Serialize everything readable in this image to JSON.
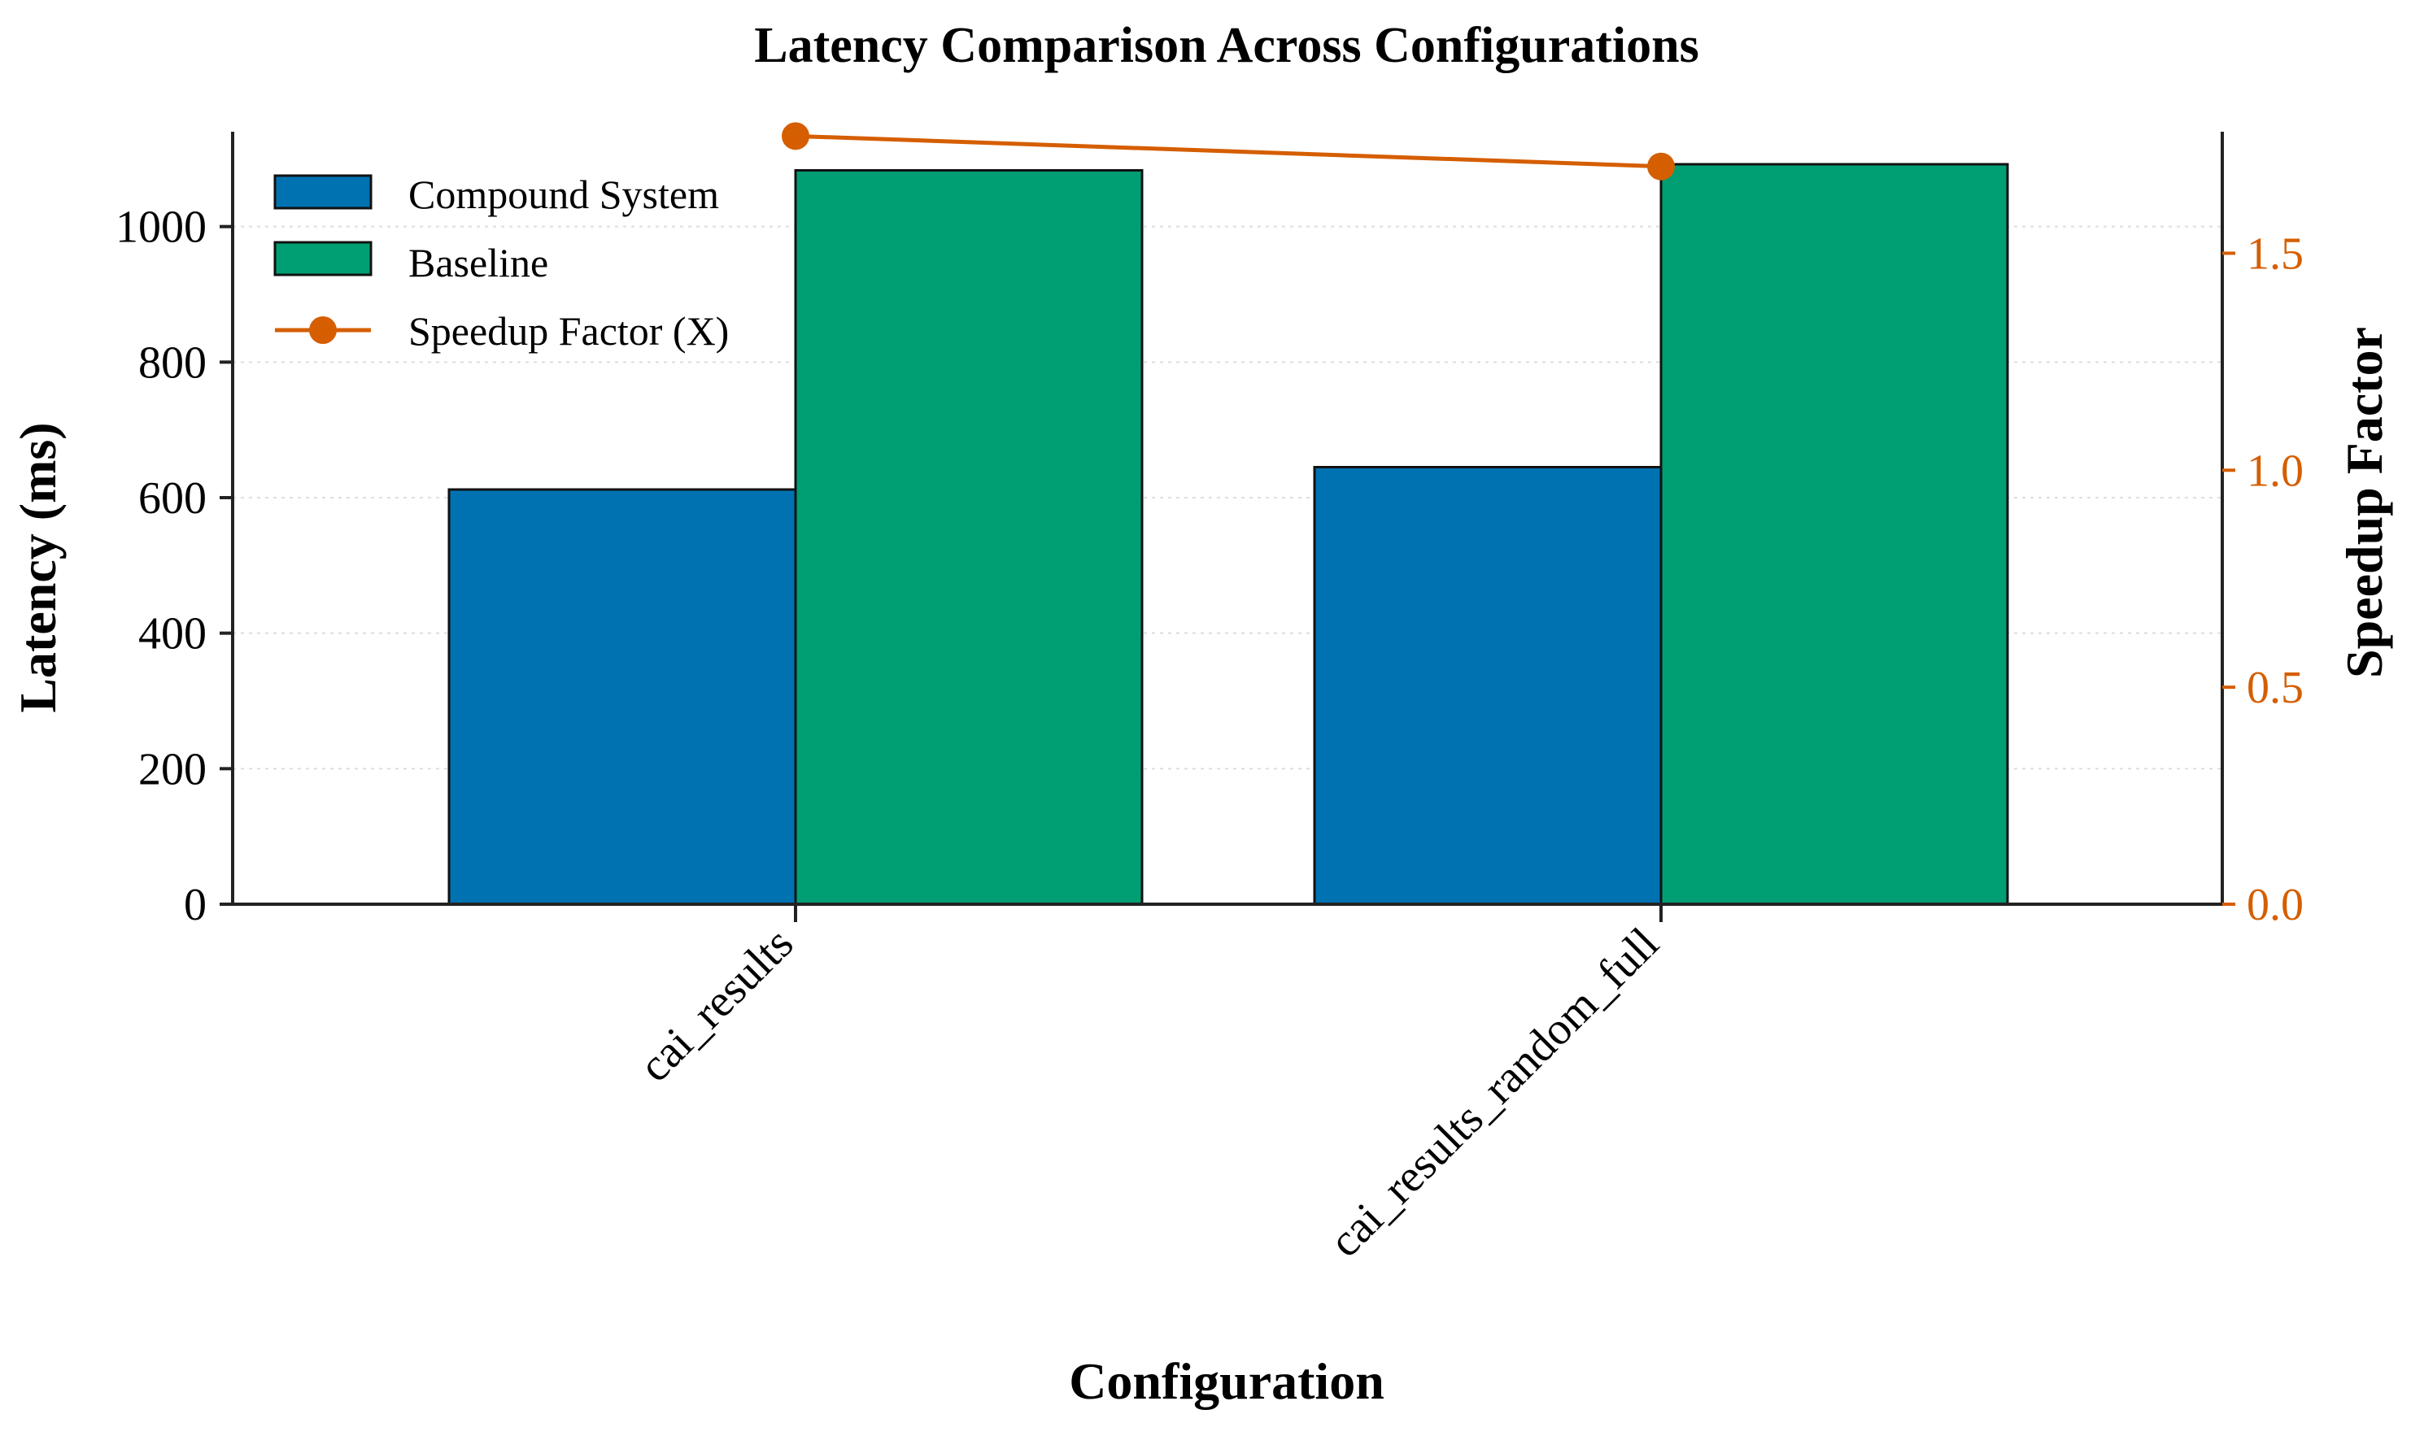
{
  "chart_data": {
    "type": "bar",
    "title": "Latency Comparison Across Configurations",
    "xlabel": "Configuration",
    "ylabel": "Latency (ms)",
    "y2label": "Speedup Factor",
    "categories": [
      "cai_results",
      "cai_results_random_full"
    ],
    "series": [
      {
        "name": "Compound System",
        "values": [
          612,
          645
        ],
        "color": "#0072b2"
      },
      {
        "name": "Baseline",
        "values": [
          1083,
          1092
        ],
        "color": "#009e73"
      }
    ],
    "line_series": {
      "name": "Speedup Factor (X)",
      "values": [
        1.77,
        1.7
      ],
      "color": "#d55e00"
    },
    "ylim": [
      0,
      1140
    ],
    "y2lim": [
      0,
      1.78
    ],
    "yticks": [
      0,
      200,
      400,
      600,
      800,
      1000
    ],
    "ytick_labels": [
      "0",
      "200",
      "400",
      "600",
      "800",
      "1000"
    ],
    "y2ticks": [
      0.0,
      0.5,
      1.0,
      1.5
    ],
    "y2tick_labels": [
      "0.0",
      "0.5",
      "1.0",
      "1.5"
    ],
    "legend_position": "top-left",
    "grid": true,
    "axis_color": "#222222",
    "grid_color": "#dddddd"
  }
}
